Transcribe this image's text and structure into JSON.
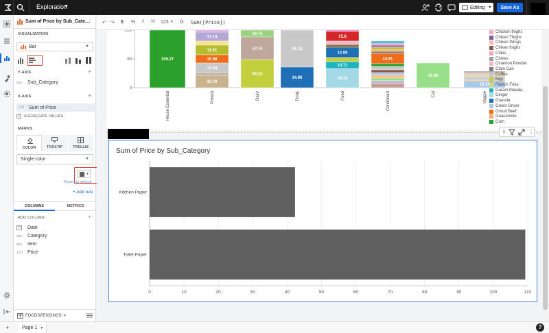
{
  "topbar": {
    "workbook_title": "Exploration",
    "editing_label": "Editing",
    "save_as_label": "Save As"
  },
  "formula_bar": {
    "format_percent": "%",
    "format_decimals": "123",
    "fx": "fx",
    "formula": "Sum([Price])"
  },
  "panel": {
    "element_title": "Sum of Price by Sub_Cate...",
    "visualization_label": "VISUALIZATION",
    "chart_type": "Bar",
    "y_axis_label": "Y-AXIS",
    "y_axis_field": "Sub_Category",
    "y_axis_field_type": "abc",
    "x_axis_label": "X-AXIS",
    "x_axis_field": "Sum of Price",
    "x_axis_field_type": "123",
    "aggregate_values_label": "AGGREGATE VALUES",
    "marks_label": "MARKS",
    "marks_tabs": [
      "COLOR",
      "TOOLTIP",
      "TRELLIS"
    ],
    "color_mode": "Single color",
    "revert_label": "Revert to default",
    "add_rule_label": "+ Add rule",
    "bottom_tabs": [
      "COLUMNS",
      "METRICS"
    ],
    "add_column_label": "ADD COLUMN",
    "columns": [
      {
        "type": "date",
        "name": "Date"
      },
      {
        "type": "abc",
        "name": "Category"
      },
      {
        "type": "abc",
        "name": "Item"
      },
      {
        "type": "123",
        "name": "Price"
      }
    ],
    "source_name": "FOODSPENDINGS"
  },
  "top_chart": {
    "ytick_labels": [
      "100",
      "50",
      "0"
    ],
    "categories": [
      "House Essential",
      "Protein",
      "Dairy",
      "Drink",
      "Food",
      "Condiment",
      "Cat",
      "Veggie"
    ],
    "segment_labels": {
      "house_essential": "109.27",
      "protein": [
        "17.14",
        "11.91",
        "15.88",
        "12.84",
        "20.79"
      ],
      "dairy": [
        "39.75",
        "22.14",
        "56.23"
      ],
      "drink": [
        "81.18",
        "34.96"
      ],
      "food": [
        "15.6",
        "12.68",
        "10.71",
        "34.19"
      ],
      "condiment": "14.91",
      "cat": "42.68",
      "veggie": "10.74"
    },
    "legend": [
      {
        "name": "Chicken thighs",
        "color": "#f4a9c6"
      },
      {
        "name": "Chiken Thighs",
        "color": "#7b5ea7"
      },
      {
        "name": "Chiken Wings",
        "color": "#f7b9c2"
      },
      {
        "name": "Chiken thighs",
        "color": "#8b5a4a"
      },
      {
        "name": "Chips",
        "color": "#f2a8b8"
      },
      {
        "name": "Chives",
        "color": "#9e9e9e"
      },
      {
        "name": "Cinamon Powder",
        "color": "#f5b7c8"
      },
      {
        "name": "Clam Can",
        "color": "#7f7f7f"
      },
      {
        "name": "Coffee",
        "color": "#c8c8c8"
      },
      {
        "name": "Egg",
        "color": "#c3cf3c"
      },
      {
        "name": "French Fries",
        "color": "#d9d96a"
      },
      {
        "name": "Garam Masala",
        "color": "#1fb3bf"
      },
      {
        "name": "Ginger",
        "color": "#a3d8e6"
      },
      {
        "name": "Granola",
        "color": "#1e6fb5"
      },
      {
        "name": "Green Onion",
        "color": "#a9c9ea"
      },
      {
        "name": "Groud Beef",
        "color": "#ef6c1a"
      },
      {
        "name": "Guacamole",
        "color": "#f6b26b"
      },
      {
        "name": "Gum",
        "color": "#2ca02c"
      }
    ]
  },
  "chart_data": {
    "type": "bar",
    "orientation": "horizontal",
    "title": "Sum of Price by Sub_Category",
    "categories": [
      "Kitchen Paper",
      "Toilet Paper"
    ],
    "values": [
      42.3,
      109.3
    ],
    "xlim": [
      0,
      110
    ],
    "xticks": [
      0,
      10,
      20,
      30,
      40,
      50,
      60,
      70,
      80,
      90,
      100,
      110
    ],
    "bar_color": "#5f5f5f",
    "grid": true
  },
  "bottombar": {
    "page_label": "Page 1"
  }
}
